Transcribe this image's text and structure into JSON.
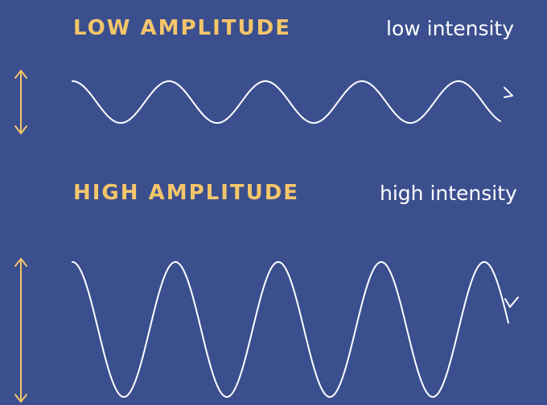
{
  "low": {
    "title": "LOW AMPLITUDE",
    "intensity": "low intensity"
  },
  "high": {
    "title": "HIGH AMPLITUDE",
    "intensity": "high intensity"
  },
  "colors": {
    "background": "#3b4f8f",
    "accent": "#f4c66a",
    "wave": "#ffffff"
  }
}
